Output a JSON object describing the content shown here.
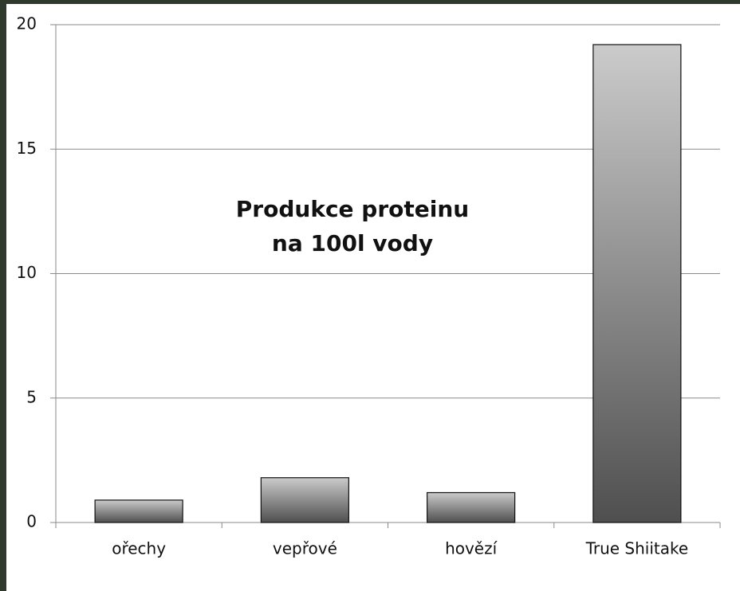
{
  "chart_data": {
    "type": "bar",
    "title": [
      "Produkce proteinu",
      "na 100l vody"
    ],
    "categories": [
      "ořechy",
      "vepřové",
      "hovězí",
      "True Shiitake"
    ],
    "values": [
      0.9,
      1.8,
      1.2,
      19.2
    ],
    "color": [
      "#cbcbcb",
      "#4f4f4f"
    ],
    "ylim": [
      0,
      20
    ],
    "yticks": [
      0,
      5,
      10,
      15,
      20
    ],
    "grid": true
  }
}
